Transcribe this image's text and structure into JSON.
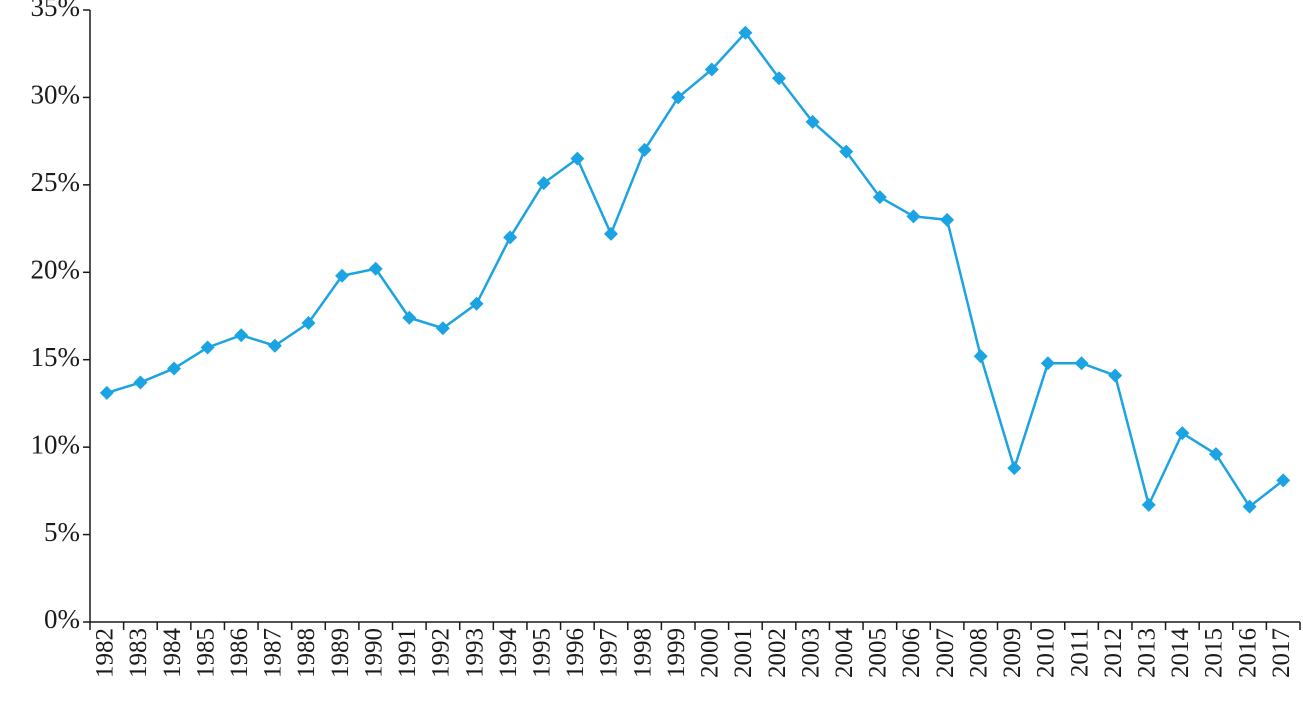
{
  "chart_data": {
    "type": "line",
    "categories": [
      "1982",
      "1983",
      "1984",
      "1985",
      "1986",
      "1987",
      "1988",
      "1989",
      "1990",
      "1991",
      "1992",
      "1993",
      "1994",
      "1995",
      "1996",
      "1997",
      "1998",
      "1999",
      "2000",
      "2001",
      "2002",
      "2003",
      "2004",
      "2005",
      "2006",
      "2007",
      "2008",
      "2009",
      "2010",
      "2011",
      "2012",
      "2013",
      "2014",
      "2015",
      "2016",
      "2017"
    ],
    "series": [
      {
        "color": "#1ba3e2",
        "values": [
          13.1,
          13.7,
          14.5,
          15.7,
          16.4,
          15.8,
          17.1,
          19.8,
          20.2,
          17.4,
          16.8,
          18.2,
          22.0,
          25.1,
          26.5,
          22.2,
          27.0,
          30.0,
          31.6,
          33.7,
          31.1,
          28.6,
          26.9,
          24.3,
          23.2,
          23.0,
          15.2,
          8.8,
          14.8,
          14.8,
          14.1,
          6.7,
          10.8,
          9.6,
          6.6,
          8.1
        ]
      }
    ],
    "ylim": [
      0,
      35
    ],
    "yticks": [
      {
        "value": 0,
        "label": "0%"
      },
      {
        "value": 5,
        "label": "5%"
      },
      {
        "value": 10,
        "label": "10%"
      },
      {
        "value": 15,
        "label": "15%"
      },
      {
        "value": 20,
        "label": "20%"
      },
      {
        "value": 25,
        "label": "25%"
      },
      {
        "value": 30,
        "label": "30%"
      },
      {
        "value": 35,
        "label": "35%"
      }
    ],
    "grid": false
  }
}
